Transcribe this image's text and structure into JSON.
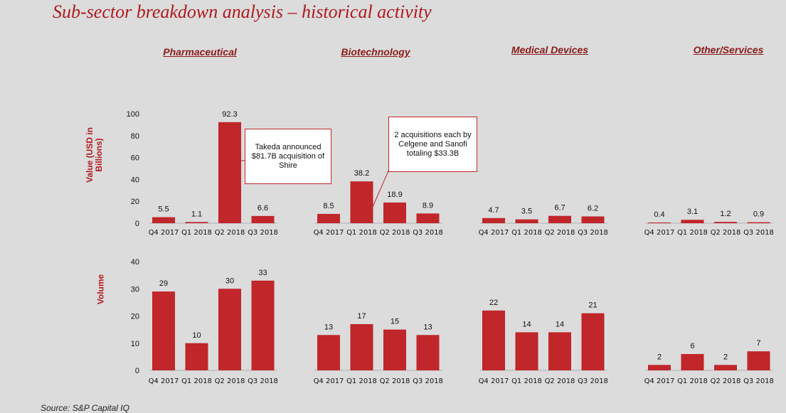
{
  "title": "Sub-sector breakdown analysis – historical activity",
  "source": "Source: S&P Capital IQ",
  "colors": {
    "bar": "#c0262a",
    "accent": "#b0191f",
    "header": "#8b1a1a"
  },
  "chart_data": {
    "type": "bar",
    "categories": [
      "Q4 2017",
      "Q1 2018",
      "Q2 2018",
      "Q3 2018"
    ],
    "sectors": [
      "Pharmaceutical",
      "Biotechnology",
      "Medical Devices",
      "Other/Services"
    ],
    "value_panel": {
      "ylabel": "Value (USD in Billions)",
      "ylim": [
        0,
        100
      ],
      "yticks": [
        0,
        20,
        40,
        60,
        80,
        100
      ],
      "series": [
        {
          "sector": "Pharmaceutical",
          "values": [
            5.5,
            1.1,
            92.3,
            6.6
          ]
        },
        {
          "sector": "Biotechnology",
          "values": [
            8.5,
            38.2,
            18.9,
            8.9
          ]
        },
        {
          "sector": "Medical Devices",
          "values": [
            4.7,
            3.5,
            6.7,
            6.2
          ]
        },
        {
          "sector": "Other/Services",
          "values": [
            0.4,
            3.1,
            1.2,
            0.9
          ]
        }
      ]
    },
    "volume_panel": {
      "ylabel": "Volume",
      "ylim": [
        0,
        40
      ],
      "yticks": [
        0,
        10,
        20,
        30,
        40
      ],
      "series": [
        {
          "sector": "Pharmaceutical",
          "values": [
            29,
            10,
            30,
            33
          ]
        },
        {
          "sector": "Biotechnology",
          "values": [
            13,
            17,
            15,
            13
          ]
        },
        {
          "sector": "Medical Devices",
          "values": [
            22,
            14,
            14,
            21
          ]
        },
        {
          "sector": "Other/Services",
          "values": [
            2,
            6,
            2,
            7
          ]
        }
      ]
    },
    "annotations": [
      {
        "sector": "Pharmaceutical",
        "category": "Q2 2018",
        "text": "Takeda announced $81.7B acquisition of Shire"
      },
      {
        "sector": "Biotechnology",
        "category": "Q1 2018",
        "text": "2 acquisitions each by Celgene and Sanofi totaling $33.3B"
      }
    ]
  }
}
